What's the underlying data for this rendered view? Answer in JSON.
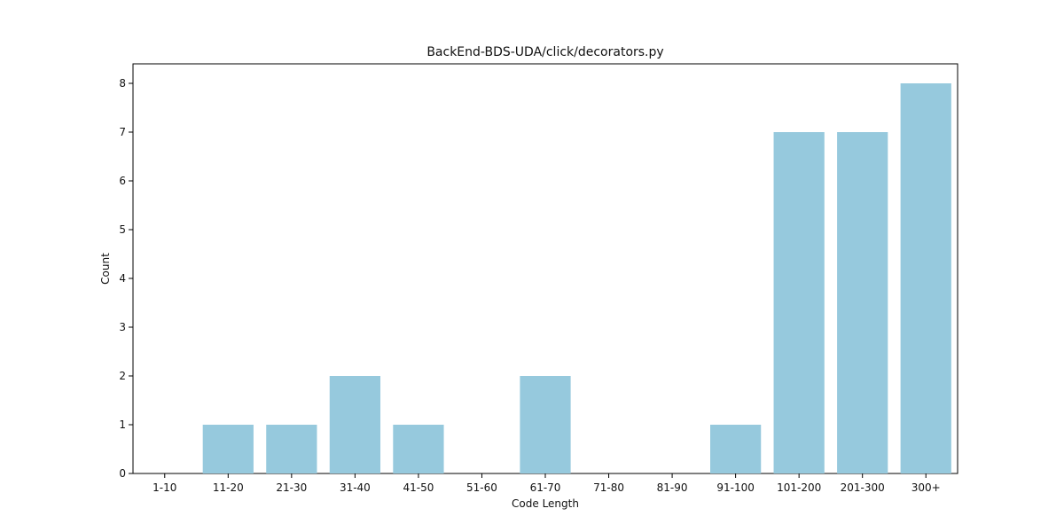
{
  "colors": {
    "bar": "#96c9dd",
    "axis": "#000000",
    "text": "#111111",
    "background": "#ffffff"
  },
  "chart_data": {
    "type": "bar",
    "title": "BackEnd-BDS-UDA/click/decorators.py",
    "xlabel": "Code Length",
    "ylabel": "Count",
    "categories": [
      "1-10",
      "11-20",
      "21-30",
      "31-40",
      "41-50",
      "51-60",
      "61-70",
      "71-80",
      "81-90",
      "91-100",
      "101-200",
      "201-300",
      "300+"
    ],
    "values": [
      0,
      1,
      1,
      2,
      1,
      0,
      2,
      0,
      0,
      1,
      7,
      7,
      8
    ],
    "ylim": [
      0,
      8.4
    ],
    "yticks": [
      0,
      1,
      2,
      3,
      4,
      5,
      6,
      7,
      8
    ],
    "grid": false,
    "legend": false
  }
}
